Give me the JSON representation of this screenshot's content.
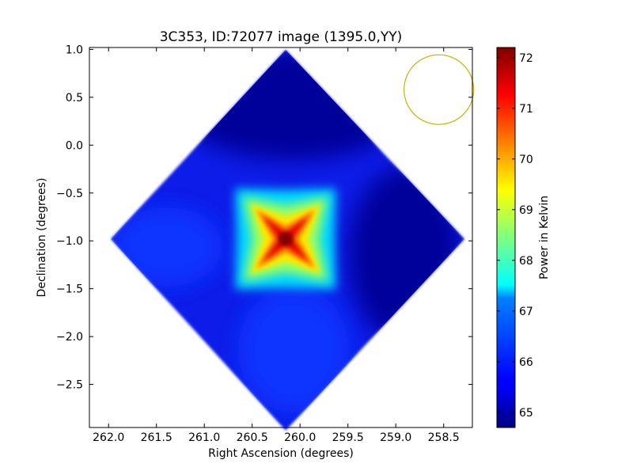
{
  "figure": {
    "title": "3C353, ID:72077 image (1395.0,YY)"
  },
  "chart_data": {
    "type": "heatmap",
    "title": "3C353, ID:72077 image (1395.0,YY)",
    "xlabel": "Right Ascension (degrees)",
    "ylabel": "Declination (degrees)",
    "xlim": [
      262.2,
      258.2
    ],
    "ylim": [
      -2.95,
      1.02
    ],
    "x_inverted": true,
    "x_ticks": [
      262.0,
      261.5,
      261.0,
      260.5,
      260.0,
      259.5,
      259.0,
      258.5
    ],
    "x_tick_labels": [
      "262.0",
      "261.5",
      "261.0",
      "260.5",
      "260.0",
      "259.5",
      "259.0",
      "258.5"
    ],
    "y_ticks": [
      1.0,
      0.5,
      0.0,
      -0.5,
      -1.0,
      -1.5,
      -2.0,
      -2.5
    ],
    "y_tick_labels": [
      "1.0",
      "0.5",
      "0.0",
      "−0.5",
      "−1.0",
      "−1.5",
      "−2.0",
      "−2.5"
    ],
    "colorbar": {
      "label": "Power in Kelvin",
      "colormap": "jet",
      "vmin": 64.7,
      "vmax": 72.2,
      "ticks": [
        65,
        66,
        67,
        68,
        69,
        70,
        71,
        72
      ],
      "tick_labels": [
        "65",
        "66",
        "67",
        "68",
        "69",
        "70",
        "71",
        "72"
      ]
    },
    "map": {
      "shape": "diamond",
      "center_ra": 260.15,
      "center_dec": -0.98,
      "half_extent_deg": 2.0,
      "background_value": 65.8,
      "peak": {
        "ra": 260.15,
        "dec": -0.98,
        "value": 72.2
      },
      "low_corners": [
        {
          "ra": 260.15,
          "dec": 0.95,
          "value": 64.9
        },
        {
          "ra": 258.3,
          "dec": -1.3,
          "value": 65.0
        }
      ]
    },
    "beam": {
      "shape": "circle",
      "center_ra": 258.55,
      "center_dec": 0.58,
      "color": "#c8b400"
    },
    "grid": false
  }
}
